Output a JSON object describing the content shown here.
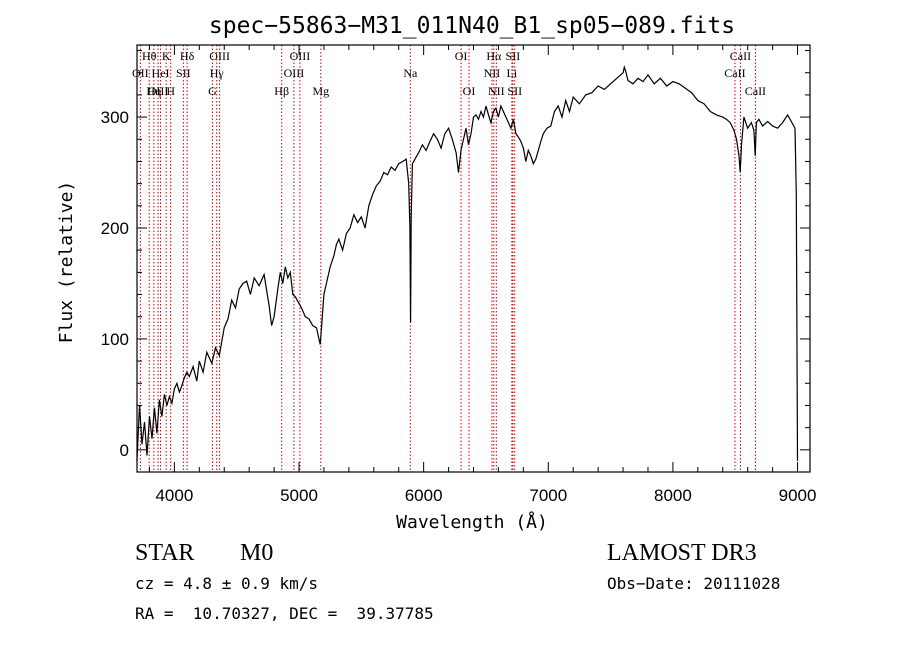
{
  "chart_data": {
    "type": "line",
    "title": "spec−55863−M31_011N40_B1_sp05−089.fits",
    "xlabel": "Wavelength (Å)",
    "ylabel": "Flux (relative)",
    "xlim": [
      3700,
      9100
    ],
    "ylim": [
      -20,
      365
    ],
    "xticks": [
      4000,
      5000,
      6000,
      7000,
      8000,
      9000
    ],
    "yticks": [
      0,
      100,
      200,
      300
    ],
    "series": [
      {
        "name": "spectrum",
        "color": "#000000",
        "x": [
          3700,
          3720,
          3740,
          3760,
          3780,
          3800,
          3820,
          3840,
          3860,
          3880,
          3900,
          3920,
          3940,
          3960,
          3980,
          4000,
          4020,
          4040,
          4060,
          4080,
          4100,
          4120,
          4150,
          4180,
          4200,
          4230,
          4260,
          4300,
          4330,
          4360,
          4400,
          4430,
          4460,
          4490,
          4520,
          4550,
          4580,
          4610,
          4640,
          4680,
          4720,
          4760,
          4780,
          4800,
          4830,
          4850,
          4870,
          4890,
          4910,
          4930,
          4950,
          4970,
          5000,
          5020,
          5050,
          5080,
          5110,
          5140,
          5170,
          5180,
          5190,
          5200,
          5220,
          5250,
          5280,
          5300,
          5320,
          5350,
          5380,
          5410,
          5440,
          5470,
          5500,
          5530,
          5560,
          5590,
          5620,
          5650,
          5680,
          5710,
          5740,
          5770,
          5800,
          5830,
          5860,
          5880,
          5890,
          5895,
          5900,
          5910,
          5930,
          5960,
          5990,
          6020,
          6050,
          6080,
          6110,
          6140,
          6170,
          6200,
          6230,
          6260,
          6280,
          6300,
          6320,
          6340,
          6360,
          6380,
          6400,
          6420,
          6440,
          6460,
          6480,
          6500,
          6520,
          6540,
          6560,
          6580,
          6600,
          6620,
          6640,
          6660,
          6680,
          6700,
          6720,
          6740,
          6760,
          6780,
          6800,
          6820,
          6840,
          6860,
          6880,
          6900,
          6920,
          6940,
          6960,
          6990,
          7020,
          7050,
          7080,
          7110,
          7140,
          7170,
          7200,
          7250,
          7300,
          7350,
          7400,
          7450,
          7500,
          7550,
          7580,
          7600,
          7610,
          7620,
          7640,
          7680,
          7720,
          7760,
          7800,
          7850,
          7900,
          7950,
          8000,
          8050,
          8100,
          8150,
          8200,
          8250,
          8300,
          8350,
          8400,
          8430,
          8460,
          8490,
          8510,
          8530,
          8540,
          8550,
          8570,
          8600,
          8630,
          8650,
          8660,
          8670,
          8690,
          8720,
          8760,
          8800,
          8840,
          8880,
          8920,
          8950,
          8980,
          8990,
          9000
        ],
        "values": [
          -10,
          40,
          5,
          25,
          -5,
          30,
          10,
          38,
          15,
          45,
          30,
          50,
          40,
          48,
          42,
          55,
          60,
          52,
          58,
          65,
          70,
          66,
          75,
          62,
          80,
          70,
          88,
          78,
          92,
          85,
          110,
          118,
          135,
          128,
          145,
          150,
          152,
          140,
          155,
          148,
          158,
          130,
          112,
          120,
          145,
          160,
          150,
          165,
          155,
          160,
          140,
          138,
          132,
          128,
          120,
          118,
          112,
          110,
          95,
          110,
          125,
          140,
          150,
          165,
          175,
          185,
          190,
          180,
          195,
          200,
          212,
          205,
          210,
          200,
          220,
          230,
          238,
          242,
          250,
          248,
          255,
          252,
          258,
          260,
          262,
          240,
          200,
          115,
          210,
          258,
          262,
          268,
          275,
          270,
          278,
          285,
          280,
          272,
          285,
          290,
          280,
          268,
          250,
          270,
          280,
          290,
          275,
          285,
          300,
          302,
          298,
          305,
          300,
          310,
          302,
          295,
          305,
          308,
          300,
          310,
          305,
          300,
          295,
          290,
          298,
          285,
          282,
          278,
          272,
          260,
          270,
          265,
          258,
          262,
          270,
          278,
          285,
          290,
          292,
          305,
          310,
          300,
          315,
          305,
          318,
          312,
          320,
          322,
          328,
          325,
          330,
          335,
          338,
          340,
          345,
          342,
          333,
          330,
          335,
          332,
          338,
          330,
          335,
          328,
          332,
          330,
          326,
          322,
          315,
          312,
          305,
          302,
          300,
          298,
          295,
          288,
          280,
          265,
          250,
          275,
          300,
          290,
          295,
          288,
          265,
          295,
          298,
          292,
          296,
          292,
          290,
          295,
          302,
          296,
          290,
          230,
          -10
        ]
      }
    ],
    "spectral_lines": [
      {
        "label": "Hθ",
        "wavelength": 3798,
        "row": 0
      },
      {
        "label": "OII",
        "wavelength": 3727,
        "row": 1
      },
      {
        "label": "OIII",
        "wavelength": 3869,
        "row": 2
      },
      {
        "label": "K",
        "wavelength": 3934,
        "row": 0
      },
      {
        "label": "HeI",
        "wavelength": 3889,
        "row": 1
      },
      {
        "label": "Hη",
        "wavelength": 3835,
        "row": 2
      },
      {
        "label": "Hδ",
        "wavelength": 4102,
        "row": 0
      },
      {
        "label": "SII",
        "wavelength": 4072,
        "row": 1
      },
      {
        "label": "H",
        "wavelength": 3970,
        "row": 2
      },
      {
        "label": "OIII",
        "wavelength": 4363,
        "row": 0
      },
      {
        "label": "Hγ",
        "wavelength": 4340,
        "row": 1
      },
      {
        "label": "G",
        "wavelength": 4305,
        "row": 2
      },
      {
        "label": "OIII",
        "wavelength": 5007,
        "row": 0
      },
      {
        "label": "OIII",
        "wavelength": 4959,
        "row": 1
      },
      {
        "label": "Hβ",
        "wavelength": 4861,
        "row": 2
      },
      {
        "label": "Mg",
        "wavelength": 5175,
        "row": 2
      },
      {
        "label": "Na",
        "wavelength": 5893,
        "row": 1
      },
      {
        "label": "OI",
        "wavelength": 6300,
        "row": 0
      },
      {
        "label": "OI",
        "wavelength": 6364,
        "row": 2
      },
      {
        "label": "Hα",
        "wavelength": 6563,
        "row": 0
      },
      {
        "label": "NII",
        "wavelength": 6548,
        "row": 1
      },
      {
        "label": "NII",
        "wavelength": 6583,
        "row": 2
      },
      {
        "label": "SII",
        "wavelength": 6716,
        "row": 0
      },
      {
        "label": "Li",
        "wavelength": 6708,
        "row": 1
      },
      {
        "label": "SII",
        "wavelength": 6731,
        "row": 2
      },
      {
        "label": "CaII",
        "wavelength": 8542,
        "row": 0
      },
      {
        "label": "CaII",
        "wavelength": 8498,
        "row": 1
      },
      {
        "label": "CaII",
        "wavelength": 8662,
        "row": 2
      }
    ],
    "line_marker_color": "#cc0000",
    "grid": false
  },
  "info": {
    "class": "STAR",
    "subclass": "M0",
    "survey": "LAMOST DR3",
    "velocity": "cz = 4.8 ± 0.9 km/s",
    "obs_date": "Obs−Date: 20111028",
    "coords": "RA =  10.70327, DEC =  39.37785"
  }
}
